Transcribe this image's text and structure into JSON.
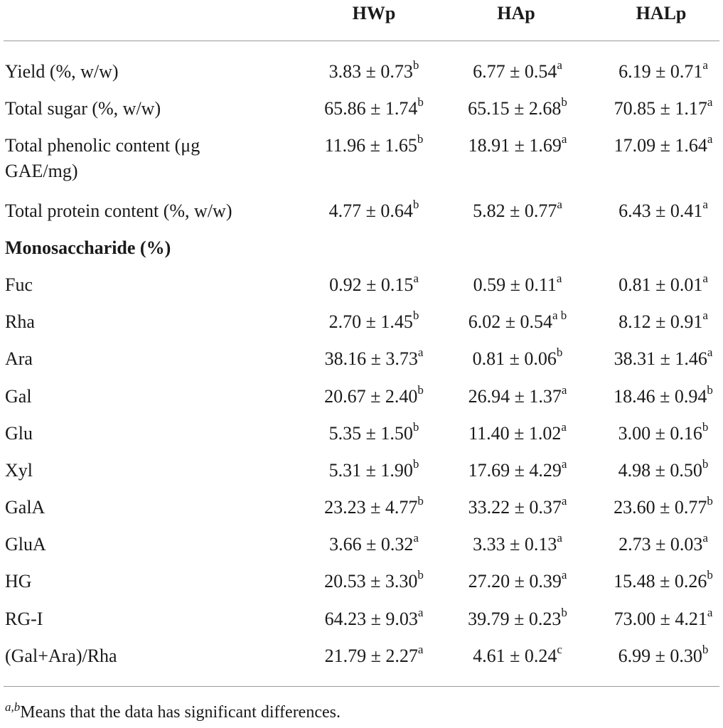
{
  "table": {
    "headers": [
      "HWp",
      "HAp",
      "HALp"
    ],
    "rows": [
      {
        "label": "Yield (%, w/w)",
        "cells": [
          {
            "value": "3.83 ± 0.73",
            "sup": "b"
          },
          {
            "value": "6.77 ± 0.54",
            "sup": "a"
          },
          {
            "value": "6.19 ± 0.71",
            "sup": "a"
          }
        ]
      },
      {
        "label": "Total sugar (%, w/w)",
        "cells": [
          {
            "value": "65.86 ± 1.74",
            "sup": "b"
          },
          {
            "value": "65.15 ± 2.68",
            "sup": "b"
          },
          {
            "value": "70.85 ± 1.17",
            "sup": "a"
          }
        ]
      },
      {
        "label": "Total phenolic content (μg GAE/mg)",
        "label_line1": "Total phenolic content (μg",
        "label_line2": "GAE/mg)",
        "cells": [
          {
            "value": "11.96 ± 1.65",
            "sup": "b"
          },
          {
            "value": "18.91 ± 1.69",
            "sup": "a"
          },
          {
            "value": "17.09 ± 1.64",
            "sup": "a"
          }
        ]
      },
      {
        "label": "Total protein content (%, w/w)",
        "cells": [
          {
            "value": "4.77 ± 0.64",
            "sup": "b"
          },
          {
            "value": "5.82 ± 0.77",
            "sup": "a"
          },
          {
            "value": "6.43 ± 0.41",
            "sup": "a"
          }
        ]
      },
      {
        "label": "Monosaccharide (%)",
        "section": true
      },
      {
        "label": "Fuc",
        "cells": [
          {
            "value": "0.92 ± 0.15",
            "sup": "a"
          },
          {
            "value": "0.59 ± 0.11",
            "sup": "a"
          },
          {
            "value": "0.81 ± 0.01",
            "sup": "a"
          }
        ]
      },
      {
        "label": "Rha",
        "cells": [
          {
            "value": "2.70 ± 1.45",
            "sup": "b"
          },
          {
            "value": "6.02 ± 0.54",
            "sup": "a b"
          },
          {
            "value": "8.12 ± 0.91",
            "sup": "a"
          }
        ]
      },
      {
        "label": "Ara",
        "cells": [
          {
            "value": "38.16 ± 3.73",
            "sup": "a"
          },
          {
            "value": "0.81 ± 0.06",
            "sup": "b"
          },
          {
            "value": "38.31 ± 1.46",
            "sup": "a"
          }
        ]
      },
      {
        "label": "Gal",
        "cells": [
          {
            "value": "20.67 ± 2.40",
            "sup": "b"
          },
          {
            "value": "26.94 ± 1.37",
            "sup": "a"
          },
          {
            "value": "18.46 ± 0.94",
            "sup": "b"
          }
        ]
      },
      {
        "label": "Glu",
        "cells": [
          {
            "value": "5.35 ± 1.50",
            "sup": "b"
          },
          {
            "value": "11.40 ± 1.02",
            "sup": "a"
          },
          {
            "value": "3.00 ± 0.16",
            "sup": "b"
          }
        ]
      },
      {
        "label": "Xyl",
        "cells": [
          {
            "value": "5.31 ± 1.90",
            "sup": "b"
          },
          {
            "value": "17.69 ± 4.29",
            "sup": "a"
          },
          {
            "value": "4.98 ± 0.50",
            "sup": "b"
          }
        ]
      },
      {
        "label": "GalA",
        "cells": [
          {
            "value": "23.23 ± 4.77",
            "sup": "b"
          },
          {
            "value": "33.22 ± 0.37",
            "sup": "a"
          },
          {
            "value": "23.60 ± 0.77",
            "sup": "b"
          }
        ]
      },
      {
        "label": "GluA",
        "cells": [
          {
            "value": "3.66 ± 0.32",
            "sup": "a"
          },
          {
            "value": "3.33 ± 0.13",
            "sup": "a"
          },
          {
            "value": "2.73 ± 0.03",
            "sup": "a"
          }
        ]
      },
      {
        "label": "HG",
        "cells": [
          {
            "value": "20.53 ± 3.30",
            "sup": "b"
          },
          {
            "value": "27.20 ± 0.39",
            "sup": "a"
          },
          {
            "value": "15.48 ± 0.26",
            "sup": "b"
          }
        ]
      },
      {
        "label": "RG-I",
        "cells": [
          {
            "value": "64.23 ± 9.03",
            "sup": "a"
          },
          {
            "value": "39.79 ± 0.23",
            "sup": "b"
          },
          {
            "value": "73.00 ± 4.21",
            "sup": "a"
          }
        ]
      },
      {
        "label": "(Gal+Ara)/Rha",
        "cells": [
          {
            "value": "21.79 ± 2.27",
            "sup": "a"
          },
          {
            "value": "4.61 ± 0.24",
            "sup": "c"
          },
          {
            "value": "6.99 ± 0.30",
            "sup": "b"
          }
        ]
      }
    ]
  },
  "footnote": {
    "marks": "a,b",
    "text": "Means that the data has significant differences."
  }
}
